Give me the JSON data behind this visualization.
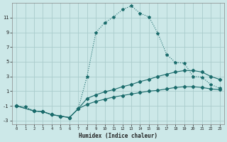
{
  "xlabel": "Humidex (Indice chaleur)",
  "bg_color": "#cce8e8",
  "grid_color": "#aacccc",
  "line_color": "#1a6b6b",
  "curve1_x": [
    0,
    1,
    2,
    3,
    4,
    5,
    6,
    7,
    8,
    9,
    10,
    11,
    12,
    13,
    14,
    15,
    16,
    17,
    18,
    19,
    20,
    21,
    22,
    23
  ],
  "curve1_y": [
    -1.0,
    -1.1,
    -1.7,
    -1.8,
    -2.2,
    -2.4,
    -2.6,
    -1.4,
    3.0,
    9.0,
    10.3,
    11.1,
    12.1,
    12.6,
    11.6,
    11.1,
    8.9,
    6.0,
    4.9,
    4.8,
    3.0,
    2.9,
    1.9,
    1.4
  ],
  "curve2_x": [
    0,
    2,
    3,
    4,
    5,
    6,
    7,
    8,
    9,
    10,
    11,
    12,
    13,
    14,
    15,
    16,
    17,
    18,
    19,
    20,
    21,
    22,
    23
  ],
  "curve2_y": [
    -1.0,
    -1.7,
    -1.8,
    -2.2,
    -2.4,
    -2.6,
    -1.4,
    0.0,
    0.5,
    0.9,
    1.2,
    1.6,
    1.9,
    2.3,
    2.6,
    3.0,
    3.3,
    3.6,
    3.8,
    3.8,
    3.6,
    3.0,
    2.6
  ],
  "curve3_x": [
    0,
    2,
    3,
    4,
    5,
    6,
    7,
    8,
    9,
    10,
    11,
    12,
    13,
    14,
    15,
    16,
    17,
    18,
    19,
    20,
    21,
    22,
    23
  ],
  "curve3_y": [
    -1.0,
    -1.7,
    -1.8,
    -2.2,
    -2.4,
    -2.6,
    -1.4,
    -0.8,
    -0.4,
    -0.1,
    0.2,
    0.4,
    0.6,
    0.8,
    1.0,
    1.1,
    1.3,
    1.5,
    1.6,
    1.6,
    1.5,
    1.3,
    1.2
  ],
  "xlim": [
    -0.5,
    23.5
  ],
  "ylim": [
    -3.5,
    13.0
  ],
  "yticks": [
    -3,
    -1,
    1,
    3,
    5,
    7,
    9,
    11
  ],
  "xticks": [
    0,
    1,
    2,
    3,
    4,
    5,
    6,
    7,
    8,
    9,
    10,
    11,
    12,
    13,
    14,
    15,
    16,
    17,
    18,
    19,
    20,
    21,
    22,
    23
  ]
}
